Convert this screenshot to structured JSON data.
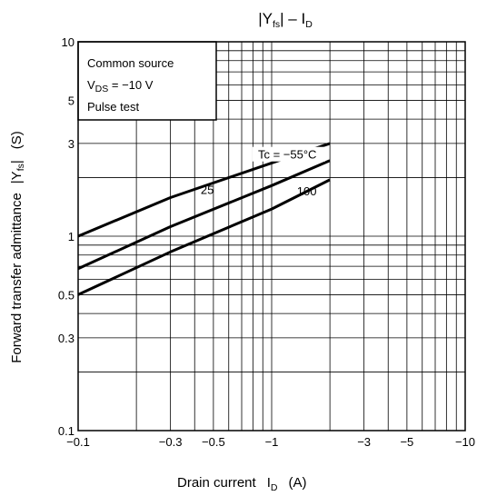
{
  "chart_data": {
    "type": "line",
    "title": "|Yfs| – ID",
    "title_parts": {
      "bar_left": "|",
      "main": "Y",
      "sub": "fs",
      "bar_right": "|",
      "dash": " – ",
      "id_main": "I",
      "id_sub": "D"
    },
    "xlabel": {
      "text": "Drain current",
      "sym": "I",
      "sub": "D",
      "unit": "(A)"
    },
    "ylabel": {
      "text": "Forward transfer admittance",
      "sym_main": "Y",
      "sym_sub": "fs",
      "unit": "(S)"
    },
    "x_scale": "log",
    "y_scale": "log",
    "xlim": [
      -0.1,
      -10
    ],
    "ylim": [
      0.1,
      10
    ],
    "grid": true,
    "x_ticks": [
      {
        "value": -0.1,
        "label": "−0.1"
      },
      {
        "value": -0.3,
        "label": "−0.3"
      },
      {
        "value": -0.5,
        "label": "−0.5"
      },
      {
        "value": -1,
        "label": "−1"
      },
      {
        "value": -3,
        "label": "−3"
      },
      {
        "value": -5,
        "label": "−5"
      },
      {
        "value": -10,
        "label": "−10"
      }
    ],
    "y_ticks": [
      {
        "value": 0.1,
        "label": "0.1"
      },
      {
        "value": 0.3,
        "label": "0.3"
      },
      {
        "value": 0.5,
        "label": "0.5"
      },
      {
        "value": 1,
        "label": "1"
      },
      {
        "value": 3,
        "label": "3"
      },
      {
        "value": 5,
        "label": "5"
      },
      {
        "value": 10,
        "label": "10"
      }
    ],
    "conditions": {
      "line1": "Common source",
      "line2_main": "V",
      "line2_sub": "DS",
      "line2_rest": " = −10 V",
      "line3": "Pulse test"
    },
    "series": [
      {
        "name": "Tc = −55°C",
        "x": [
          -0.1,
          -0.3,
          -1,
          -1.3,
          -2
        ],
        "y": [
          1.0,
          1.58,
          2.38,
          2.6,
          3.0
        ]
      },
      {
        "name": "25",
        "x": [
          -0.1,
          -0.3,
          -1,
          -2
        ],
        "y": [
          0.68,
          1.12,
          1.82,
          2.45
        ]
      },
      {
        "name": "100",
        "x": [
          -0.1,
          -0.3,
          -1,
          -2
        ],
        "y": [
          0.5,
          0.83,
          1.38,
          1.95
        ]
      }
    ]
  }
}
